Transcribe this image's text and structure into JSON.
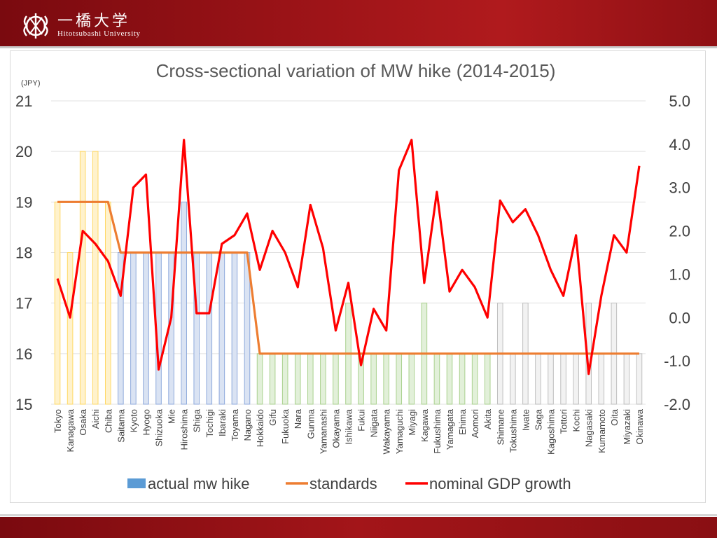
{
  "header": {
    "logo_jp": "一橋大学",
    "logo_en": "Hitotsubashi University"
  },
  "colors": {
    "header_red": "#9e1418",
    "standards": "#ed7d31",
    "gdp": "#ff0000",
    "legend_bar": "#5b9bd5",
    "bar_yellow_fill": "#fff2cc",
    "bar_yellow_stroke": "#ffd966",
    "bar_blue_fill": "#dae3f3",
    "bar_blue_stroke": "#8faadc",
    "bar_green_fill": "#e2f0d9",
    "bar_green_stroke": "#a9d18e",
    "bar_gray_fill": "#f2f2f2",
    "bar_gray_stroke": "#bfbfbf"
  },
  "chart_data": {
    "type": "bar",
    "title": "Cross-sectional variation of MW hike (2014-2015)",
    "y_unit_label": "(JPY)",
    "ylim": [
      15,
      21
    ],
    "yticks": [
      "15",
      "16",
      "17",
      "18",
      "19",
      "20",
      "21"
    ],
    "y2lim": [
      -2,
      5
    ],
    "y2ticks": [
      "-2.0",
      "-1.0",
      "0.0",
      "1.0",
      "2.0",
      "3.0",
      "4.0",
      "5.0"
    ],
    "grid": true,
    "legend_position": "bottom",
    "categories": [
      "Tokyo",
      "Kanagawa",
      "Osaka",
      "Aichi",
      "Chiba",
      "Saitama",
      "Kyoto",
      "Hyogo",
      "Shizuoka",
      "Mie",
      "Hiroshima",
      "Shiga",
      "Tochigi",
      "Ibaraki",
      "Toyama",
      "Nagano",
      "Hokkaido",
      "Gifu",
      "Fukuoka",
      "Nara",
      "Gunma",
      "Yamanashi",
      "Okayama",
      "Ishikawa",
      "Fukui",
      "Niigata",
      "Wakayama",
      "Yamaguchi",
      "Miyagi",
      "Kagawa",
      "Fukushima",
      "Yamagata",
      "Ehima",
      "Aomori",
      "Akita",
      "Shimane",
      "Tokushima",
      "Iwate",
      "Saga",
      "Kagoshima",
      "Tottori",
      "Kochi",
      "Nagasaki",
      "Kumamoto",
      "Oita",
      "Miyazaki",
      "Okinawa"
    ],
    "groups": [
      "yellow",
      "yellow",
      "yellow",
      "yellow",
      "yellow",
      "blue",
      "blue",
      "blue",
      "blue",
      "blue",
      "blue",
      "blue",
      "blue",
      "blue",
      "blue",
      "blue",
      "green",
      "green",
      "green",
      "green",
      "green",
      "green",
      "green",
      "green",
      "green",
      "green",
      "green",
      "green",
      "green",
      "green",
      "green",
      "green",
      "green",
      "green",
      "green",
      "gray",
      "gray",
      "gray",
      "gray",
      "gray",
      "gray",
      "gray",
      "gray",
      "gray",
      "gray",
      "gray",
      "gray"
    ],
    "series": [
      {
        "name": "actual mw hike",
        "type": "bar",
        "axis": "left",
        "values": [
          19,
          18,
          20,
          20,
          19,
          18,
          18,
          18,
          18,
          18,
          19,
          18,
          18,
          18,
          18,
          18,
          16,
          16,
          16,
          16,
          16,
          16,
          16,
          17,
          16,
          16,
          16,
          16,
          16,
          17,
          16,
          16,
          16,
          16,
          16,
          17,
          16,
          17,
          16,
          16,
          16,
          16,
          17,
          16,
          17,
          16,
          16
        ]
      },
      {
        "name": "standards",
        "type": "line",
        "axis": "left",
        "values": [
          19,
          19,
          19,
          19,
          19,
          18,
          18,
          18,
          18,
          18,
          18,
          18,
          18,
          18,
          18,
          18,
          16,
          16,
          16,
          16,
          16,
          16,
          16,
          16,
          16,
          16,
          16,
          16,
          16,
          16,
          16,
          16,
          16,
          16,
          16,
          16,
          16,
          16,
          16,
          16,
          16,
          16,
          16,
          16,
          16,
          16,
          16
        ]
      },
      {
        "name": "nominal GDP growth",
        "type": "line",
        "axis": "right",
        "values": [
          0.9,
          0.0,
          2.0,
          1.7,
          1.3,
          0.5,
          3.0,
          3.3,
          -1.2,
          0.0,
          4.1,
          0.1,
          0.1,
          1.7,
          1.9,
          2.4,
          1.1,
          2.0,
          1.5,
          0.7,
          2.6,
          1.6,
          -0.3,
          0.8,
          -1.1,
          0.2,
          -0.3,
          3.4,
          4.1,
          0.8,
          2.9,
          0.6,
          1.1,
          0.7,
          0.0,
          2.7,
          2.2,
          2.5,
          1.9,
          1.1,
          0.5,
          1.9,
          -1.3,
          0.5,
          1.9,
          1.5,
          3.5
        ]
      }
    ]
  }
}
